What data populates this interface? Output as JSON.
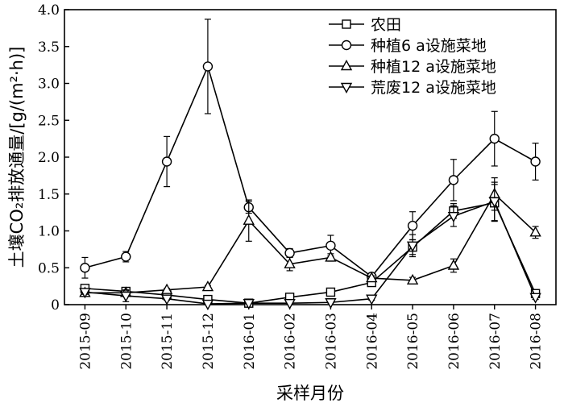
{
  "chart_data": {
    "type": "line",
    "xlabel": "采样月份",
    "ylabel": "土壤CO₂排放通量/[g/(m²·h)]",
    "categories": [
      "2015-09",
      "2015-10",
      "2015-11",
      "2015-12",
      "2016-01",
      "2016-02",
      "2016-03",
      "2016-04",
      "2016-05",
      "2016-06",
      "2016-07",
      "2016-08"
    ],
    "ylim": [
      0,
      4.0
    ],
    "yticks": [
      "0",
      "0.5",
      "1.0",
      "1.5",
      "2.0",
      "2.5",
      "3.0",
      "3.5",
      "4.0"
    ],
    "legend_position": "top-right",
    "grid": false,
    "series": [
      {
        "name": "农田",
        "marker": "square",
        "values": [
          0.22,
          0.18,
          0.13,
          0.07,
          0.02,
          0.1,
          0.17,
          0.3,
          0.78,
          1.27,
          1.38,
          0.15
        ],
        "errors": [
          0.05,
          0.03,
          0.02,
          0.02,
          0.01,
          0.02,
          0.02,
          0.04,
          0.1,
          0.1,
          0.25,
          0.04
        ]
      },
      {
        "name": "种植6 a设施菜地",
        "marker": "circle",
        "values": [
          0.5,
          0.65,
          1.94,
          3.23,
          1.32,
          0.7,
          0.8,
          0.38,
          1.07,
          1.69,
          2.25,
          1.94
        ],
        "errors": [
          0.14,
          0.07,
          0.34,
          0.64,
          0.08,
          0.06,
          0.14,
          0.04,
          0.19,
          0.28,
          0.37,
          0.25
        ]
      },
      {
        "name": "种植12 a设施菜地",
        "marker": "triangle-up",
        "values": [
          0.16,
          0.16,
          0.2,
          0.24,
          1.14,
          0.55,
          0.64,
          0.36,
          0.33,
          0.53,
          1.5,
          0.98
        ],
        "errors": [
          0.03,
          0.03,
          0.02,
          0.02,
          0.28,
          0.09,
          0.05,
          0.03,
          0.04,
          0.09,
          0.22,
          0.08
        ]
      },
      {
        "name": "荒废12 a设施菜地",
        "marker": "triangle-down",
        "values": [
          0.17,
          0.12,
          0.08,
          0.01,
          0.02,
          0.02,
          0.03,
          0.08,
          0.8,
          1.2,
          1.4,
          0.1
        ],
        "errors": [
          0.03,
          0.08,
          0.02,
          0.01,
          0.01,
          0.01,
          0.01,
          0.02,
          0.15,
          0.14,
          0.26,
          0.03
        ]
      }
    ]
  }
}
